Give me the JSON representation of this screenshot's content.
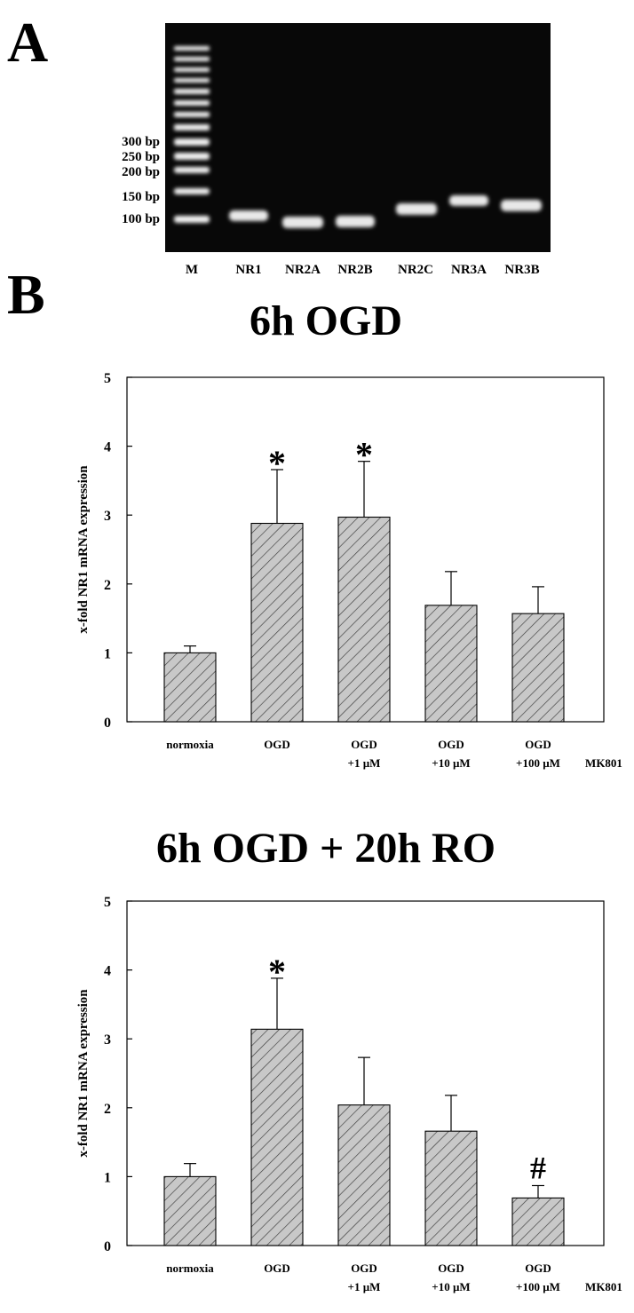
{
  "panels": {
    "a": "A",
    "b": "B"
  },
  "gel": {
    "marker_labels": [
      "300 bp",
      "250 bp",
      "200 bp",
      "150 bp",
      "100 bp"
    ],
    "lane_labels": [
      "M",
      "NR1",
      "NR2A",
      "NR2B",
      "NR2C",
      "NR3A",
      "NR3B"
    ]
  },
  "chart_data": [
    {
      "type": "bar",
      "title": "6h OGD",
      "ylabel": "x-fold NR1 mRNA expression",
      "xlabel": "",
      "ylim": [
        0,
        5
      ],
      "yticks": [
        "0",
        "1",
        "2",
        "3",
        "4",
        "5"
      ],
      "categories": [
        [
          "normoxia"
        ],
        [
          "OGD"
        ],
        [
          "OGD",
          "+1 µM"
        ],
        [
          "OGD",
          "+10 µM"
        ],
        [
          "OGD",
          "+100 µM"
        ]
      ],
      "treatment_label": "MK801",
      "values": [
        1.0,
        2.88,
        2.97,
        1.69,
        1.57
      ],
      "errors": [
        0.1,
        0.78,
        0.81,
        0.49,
        0.39
      ],
      "annotations": [
        "",
        "*",
        "*",
        "",
        ""
      ],
      "grid": false,
      "bar_pattern": "diagonal-hatch"
    },
    {
      "type": "bar",
      "title": "6h OGD + 20h RO",
      "ylabel": "x-fold NR1 mRNA expression",
      "xlabel": "",
      "ylim": [
        0,
        5
      ],
      "yticks": [
        "0",
        "1",
        "2",
        "3",
        "4",
        "5"
      ],
      "categories": [
        [
          "normoxia"
        ],
        [
          "OGD"
        ],
        [
          "OGD",
          "+1 µM"
        ],
        [
          "OGD",
          "+10 µM"
        ],
        [
          "OGD",
          "+100 µM"
        ]
      ],
      "treatment_label": "MK801",
      "values": [
        1.0,
        3.14,
        2.04,
        1.66,
        0.69
      ],
      "errors": [
        0.19,
        0.74,
        0.69,
        0.52,
        0.18
      ],
      "annotations": [
        "",
        "*",
        "",
        "",
        "#"
      ],
      "grid": false,
      "bar_pattern": "diagonal-hatch"
    }
  ]
}
